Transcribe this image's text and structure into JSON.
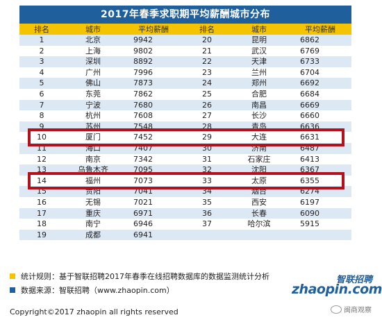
{
  "title": "2017年春季求职期平均薪酬城市分布",
  "headers": [
    "排名",
    "城市",
    "平均薪酬",
    "排名",
    "城市",
    "平均薪酬"
  ],
  "rows": [
    [
      "1",
      "北京",
      "9942",
      "20",
      "昆明",
      "6862"
    ],
    [
      "2",
      "上海",
      "9802",
      "21",
      "武汉",
      "6769"
    ],
    [
      "3",
      "深圳",
      "8892",
      "22",
      "天津",
      "6733"
    ],
    [
      "4",
      "广州",
      "7996",
      "23",
      "兰州",
      "6704"
    ],
    [
      "5",
      "佛山",
      "7873",
      "24",
      "郑州",
      "6692"
    ],
    [
      "6",
      "东莞",
      "7862",
      "25",
      "合肥",
      "6684"
    ],
    [
      "7",
      "宁波",
      "7680",
      "26",
      "南昌",
      "6669"
    ],
    [
      "8",
      "杭州",
      "7608",
      "27",
      "长沙",
      "6660"
    ],
    [
      "9",
      "苏州",
      "7548",
      "28",
      "青岛",
      "6636"
    ],
    [
      "10",
      "厦门",
      "7452",
      "29",
      "大连",
      "6631"
    ],
    [
      "11",
      "海口",
      "7407",
      "30",
      "济南",
      "6487"
    ],
    [
      "12",
      "南京",
      "7342",
      "31",
      "石家庄",
      "6413"
    ],
    [
      "13",
      "乌鲁木齐",
      "7095",
      "32",
      "沈阳",
      "6367"
    ],
    [
      "14",
      "福州",
      "7073",
      "33",
      "太原",
      "6355"
    ],
    [
      "15",
      "贵阳",
      "7041",
      "34",
      "烟台",
      "6274"
    ],
    [
      "16",
      "无锡",
      "7021",
      "35",
      "西安",
      "6197"
    ],
    [
      "17",
      "重庆",
      "6971",
      "36",
      "长春",
      "6090"
    ],
    [
      "18",
      "南宁",
      "6946",
      "37",
      "哈尔滨",
      "5915"
    ],
    [
      "19",
      "成都",
      "6941",
      "",
      "",
      ""
    ]
  ],
  "highlighted_ranks": [
    "10",
    "14"
  ],
  "notes": {
    "rule": "统计规则：基于智联招聘2017年春季在线招聘数据库的数据监测统计分析",
    "source": "数据来源：智联招聘（www.zhaopin.com）"
  },
  "logo": {
    "cn": "智联招聘",
    "en": "zhaopin.com"
  },
  "copyright": "Copyright©2017 zhaopin all rights reserved",
  "watermark": "闽商观察",
  "colors": {
    "title_bg": "#1f5f9c",
    "header_bg": "#f5c400",
    "stripe": "#dde8f5",
    "highlight": "#b3121c"
  }
}
